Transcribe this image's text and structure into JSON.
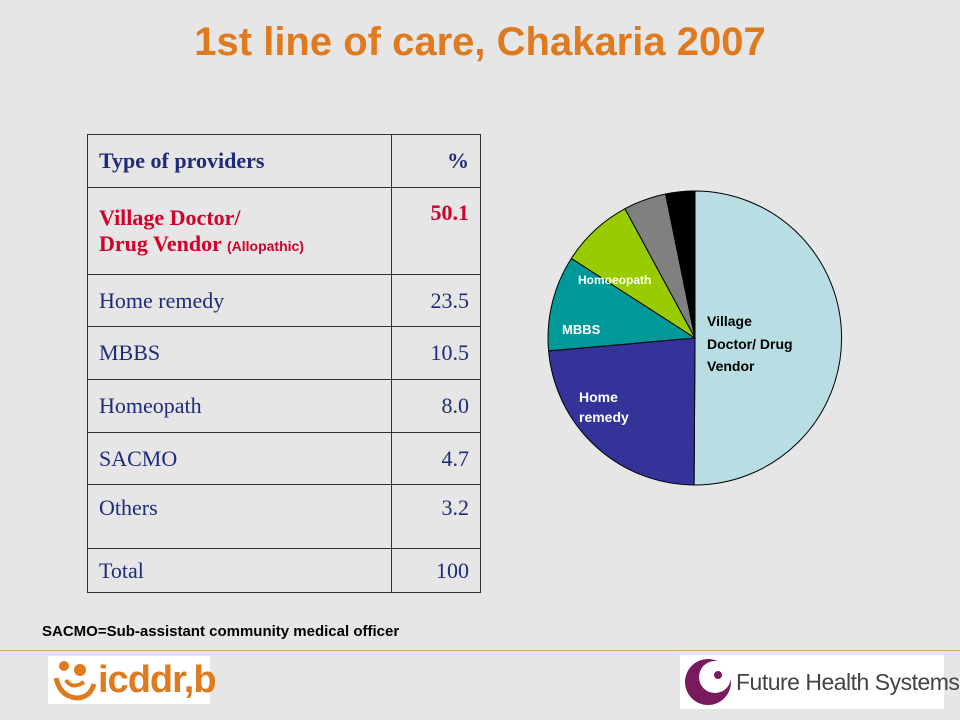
{
  "title": "1st line of care, Chakaria 2007",
  "table": {
    "header": {
      "label": "Type of providers",
      "value": "%"
    },
    "highlight": {
      "line1": "Village Doctor/",
      "line2": "Drug Vendor",
      "note": "(Allopathic)",
      "value": "50.1"
    },
    "rows": [
      {
        "label": "Home remedy",
        "value": "23.5"
      },
      {
        "label": "MBBS",
        "value": "10.5"
      },
      {
        "label": "Homeopath",
        "value": "8.0"
      },
      {
        "label": "SACMO",
        "value": "4.7"
      },
      {
        "label": "Others",
        "value": "3.2"
      },
      {
        "label": "Total",
        "value": "100"
      }
    ]
  },
  "chart_data": {
    "type": "pie",
    "slices": [
      {
        "label": "Village Doctor/ Drug Vendor",
        "value": 50.1,
        "color": "#b8dde2"
      },
      {
        "label": "Home remedy",
        "value": 23.5,
        "color": "#333399"
      },
      {
        "label": "MBBS",
        "value": 10.5,
        "color": "#009999"
      },
      {
        "label": "Homoeopath",
        "value": 8.0,
        "color": "#99cc00"
      },
      {
        "label": "",
        "value": 4.7,
        "color": "#808080"
      },
      {
        "label": "",
        "value": 3.2,
        "color": "#000000"
      }
    ]
  },
  "pie_labels": {
    "village_line1": "Village",
    "village_line2": "Doctor/ Drug",
    "village_line3": "Vendor",
    "home_line1": "Home",
    "home_line2": "remedy",
    "mbbs": "MBBS",
    "homoeopath": "Homoeopath"
  },
  "footnote": "SACMO=Sub-assistant community medical officer",
  "logos": {
    "left": "icddr,b",
    "right": "Future Health Systems"
  },
  "colors": {
    "title": "#e07a1f",
    "table_text": "#1f2a7a",
    "highlight": "#d2002a"
  }
}
